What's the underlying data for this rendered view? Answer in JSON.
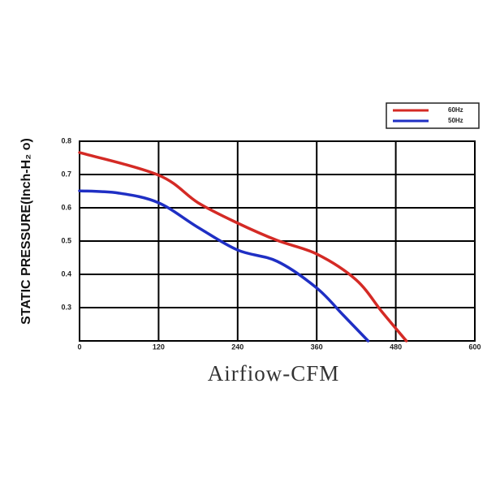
{
  "chart_data": {
    "type": "line",
    "x_label": "Airfiow-CFM",
    "y_label": "STATIC PRESSURE(Inch-H₂ o)",
    "xlim": [
      0,
      600
    ],
    "xticks": [
      0,
      120,
      240,
      360,
      480,
      600
    ],
    "ylim": [
      0.2,
      0.8
    ],
    "yticks": [
      0.3,
      0.4,
      0.5,
      0.6,
      0.7,
      0.8
    ],
    "grid": true,
    "legend": "upper right",
    "series": [
      {
        "name": "60Hz",
        "color": "#d42a25",
        "x": [
          0,
          120,
          180,
          240,
          300,
          360,
          420,
          460,
          496
        ],
        "values": [
          0.766,
          0.698,
          0.615,
          0.554,
          0.502,
          0.461,
          0.383,
          0.285,
          0.2
        ]
      },
      {
        "name": "50Hz",
        "color": "#1f2fc4",
        "x": [
          0,
          60,
          120,
          180,
          240,
          300,
          360,
          400,
          438
        ],
        "values": [
          0.651,
          0.644,
          0.615,
          0.541,
          0.473,
          0.439,
          0.359,
          0.278,
          0.2
        ]
      }
    ]
  }
}
